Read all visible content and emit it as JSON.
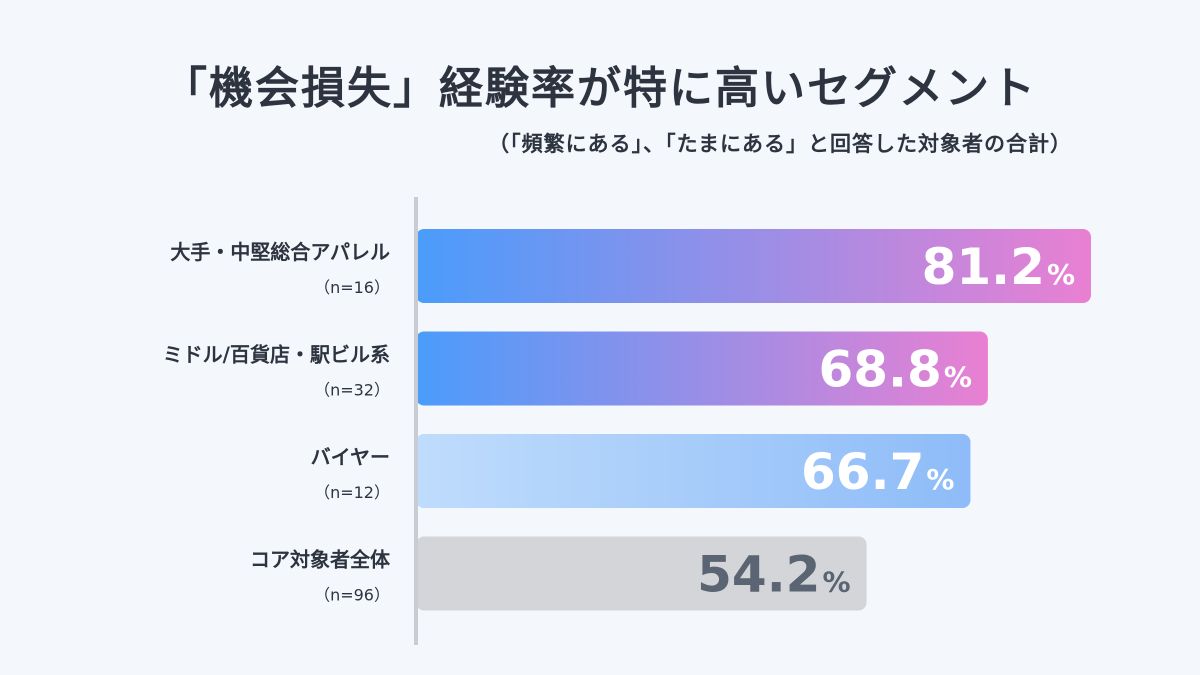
{
  "title": "「機会損失」経験率が特に高いセグメント",
  "subtitle": "（「頻繁にある」、「たまにある」と回答した対象者の合計）",
  "colors": {
    "background": "#f4f7fc",
    "axis": "#c8ccd3",
    "text": "#2d3440",
    "gradient_strong": [
      "#4a9cfb",
      "#e980d2"
    ],
    "gradient_light": [
      "#bfdcfc",
      "#8ebcf8"
    ],
    "gray_bar": "#d3d5d9",
    "gray_value": "#5b6472",
    "value_white": "#ffffff"
  },
  "chart_data": {
    "type": "bar",
    "orientation": "horizontal",
    "unit": "%",
    "categories": [
      "大手・中堅総合アパレル",
      "ミドル/百貨店・駅ビル系",
      "バイヤー",
      "コア対象者全体"
    ],
    "sample_sizes": [
      "（n=16）",
      "（n=32）",
      "（n=12）",
      "（n=96）"
    ],
    "values": [
      81.2,
      68.8,
      66.7,
      54.2
    ],
    "value_labels": [
      "81.2",
      "68.8",
      "66.7",
      "54.2"
    ],
    "bar_styles": [
      "gradient-strong",
      "gradient-strong",
      "gradient-light",
      "gray"
    ],
    "grid": false,
    "legend": "none"
  }
}
